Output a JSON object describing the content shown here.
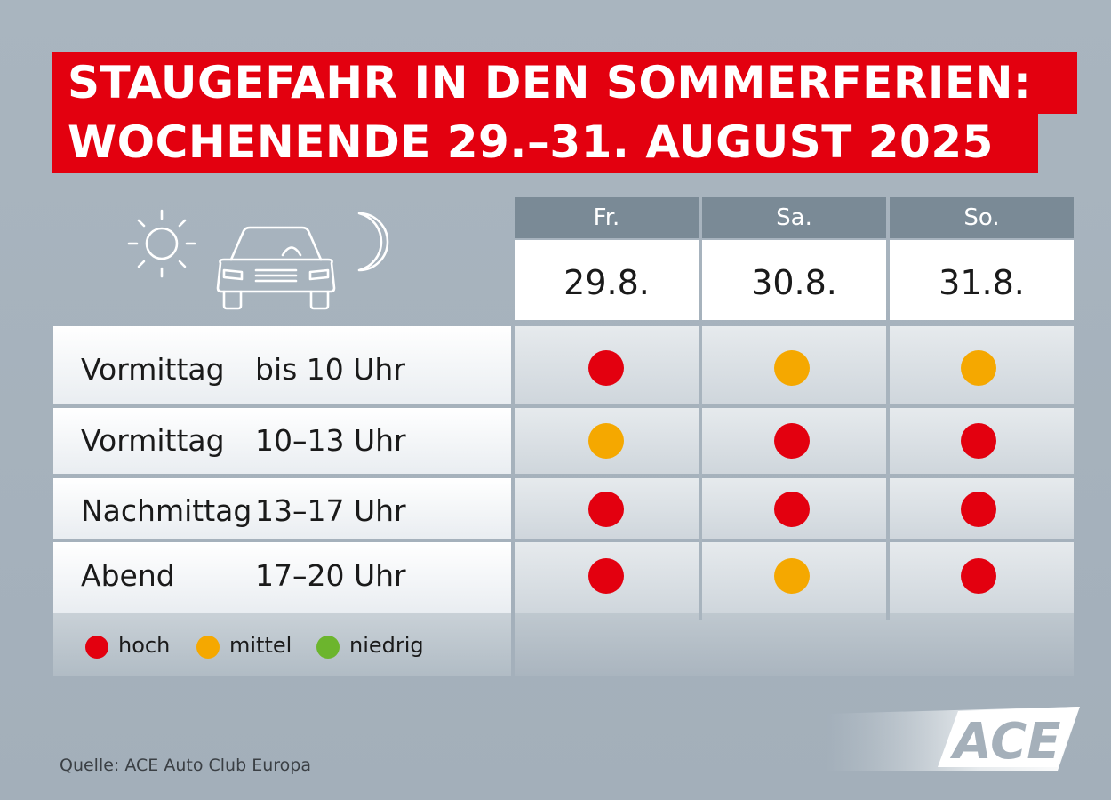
{
  "title": {
    "line1": "STAUGEFAHR IN DEN SOMMERFERIEN:",
    "line2": "WOCHENENDE 29.–31. AUGUST 2025"
  },
  "days": [
    {
      "name": "Fr.",
      "date": "29.8."
    },
    {
      "name": "Sa.",
      "date": "30.8."
    },
    {
      "name": "So.",
      "date": "31.8."
    }
  ],
  "rows": [
    {
      "period": "Vormittag",
      "time": "bis 10 Uhr",
      "levels": [
        "hoch",
        "mittel",
        "mittel"
      ]
    },
    {
      "period": "Vormittag",
      "time": "10–13 Uhr",
      "levels": [
        "mittel",
        "hoch",
        "hoch"
      ]
    },
    {
      "period": "Nachmittag",
      "time": "13–17 Uhr",
      "levels": [
        "hoch",
        "hoch",
        "hoch"
      ]
    },
    {
      "period": "Abend",
      "time": "17–20 Uhr",
      "levels": [
        "hoch",
        "mittel",
        "hoch"
      ]
    }
  ],
  "legend": [
    {
      "label": "hoch",
      "color": "#e3000f"
    },
    {
      "label": "mittel",
      "color": "#f5a800"
    },
    {
      "label": "niedrig",
      "color": "#6cb52d"
    }
  ],
  "colors": {
    "hoch": "#e3000f",
    "mittel": "#f5a800",
    "niedrig": "#6cb52d",
    "accent": "#e3000f"
  },
  "icons": [
    "sun-icon",
    "car-icon",
    "moon-icon"
  ],
  "source": "Quelle: ACE Auto Club Europa",
  "logo": "ACE"
}
